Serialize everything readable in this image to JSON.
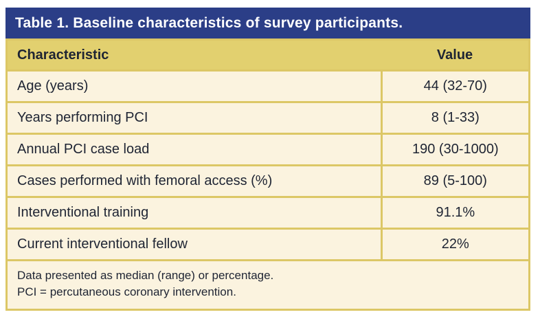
{
  "table": {
    "title": "Table 1. Baseline characteristics of survey participants.",
    "columns": {
      "characteristic": "Characteristic",
      "value": "Value"
    },
    "rows": [
      {
        "characteristic": "Age (years)",
        "value": "44 (32-70)"
      },
      {
        "characteristic": "Years performing PCI",
        "value": "8 (1-33)"
      },
      {
        "characteristic": "Annual PCI case load",
        "value": "190 (30-1000)"
      },
      {
        "characteristic": "Cases performed with femoral access (%)",
        "value": "89 (5-100)"
      },
      {
        "characteristic": "Interventional training",
        "value": "91.1%"
      },
      {
        "characteristic": "Current interventional fellow",
        "value": "22%"
      }
    ],
    "footnotes": [
      "Data presented as median (range) or percentage.",
      "PCI = percutaneous coronary intervention."
    ]
  },
  "colors": {
    "title_bar_bg": "#2B3E87",
    "title_text": "#FFFFFF",
    "header_bg": "#E2D06F",
    "row_bg": "#FBF3DF",
    "border_gold": "#DCC766",
    "text_dark": "#1E2433"
  }
}
